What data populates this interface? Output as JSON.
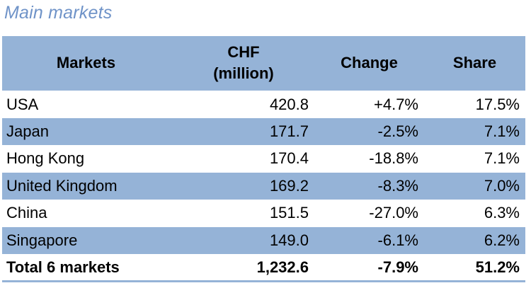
{
  "title": "Main markets",
  "table": {
    "headers": {
      "market": "Markets",
      "chf_line1": "CHF",
      "chf_line2": "(million)",
      "change": "Change",
      "share": "Share"
    },
    "rows": [
      {
        "market": "USA",
        "chf": "420.8",
        "change": "+4.7%",
        "share": "17.5%"
      },
      {
        "market": "Japan",
        "chf": "171.7",
        "change": "-2.5%",
        "share": "7.1%"
      },
      {
        "market": "Hong Kong",
        "chf": "170.4",
        "change": "-18.8%",
        "share": "7.1%"
      },
      {
        "market": "United Kingdom",
        "chf": "169.2",
        "change": "-8.3%",
        "share": "7.0%"
      },
      {
        "market": "China",
        "chf": "151.5",
        "change": "-27.0%",
        "share": "6.3%"
      },
      {
        "market": "Singapore",
        "chf": "149.0",
        "change": "-6.1%",
        "share": "6.2%"
      }
    ],
    "total": {
      "market": "Total 6 markets",
      "chf": "1,232.6",
      "change": "-7.9%",
      "share": "51.2%"
    }
  },
  "colors": {
    "title": "#6f93c8",
    "band": "#95b3d7"
  }
}
